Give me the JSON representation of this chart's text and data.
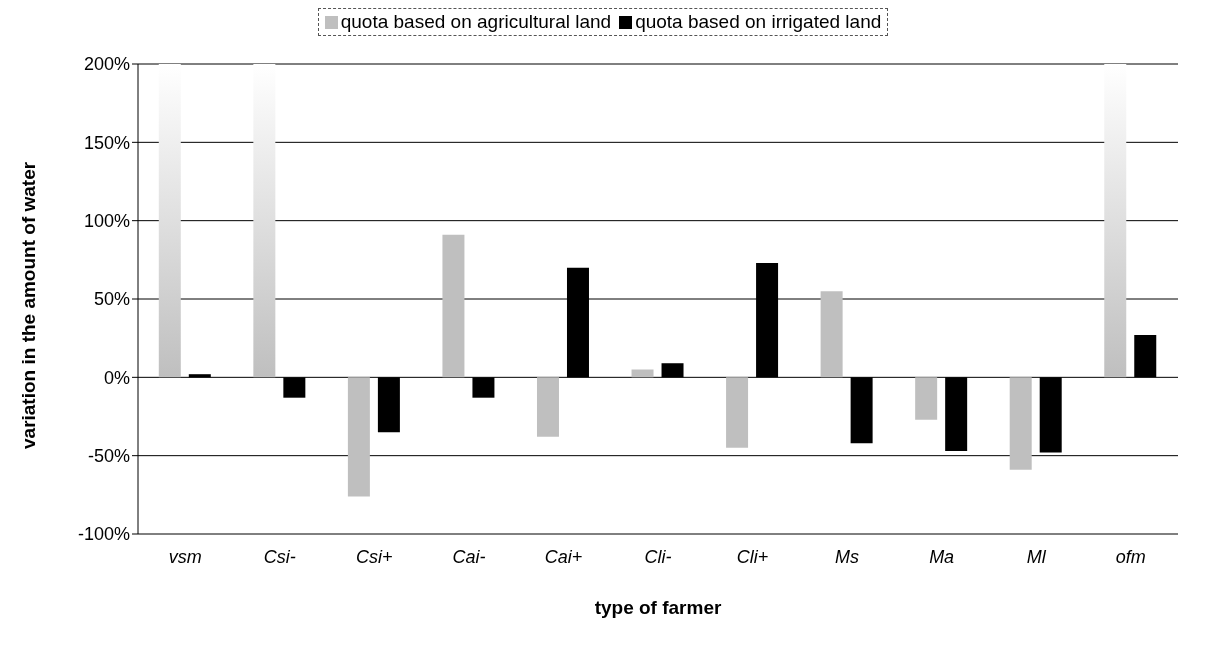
{
  "chart_data": {
    "type": "bar",
    "xlabel": "type of farmer",
    "ylabel": "variation in the amount of water",
    "categories": [
      "vsm",
      "Csi-",
      "Csi+",
      "Cai-",
      "Cai+",
      "Cli-",
      "Cli+",
      "Ms",
      "Ma",
      "Ml",
      "ofm"
    ],
    "series": [
      {
        "name": "quota based on agricultural land",
        "color": "#bfbfbf",
        "values": [
          200,
          200,
          -76,
          91,
          -38,
          5,
          -45,
          55,
          -27,
          -59,
          200
        ]
      },
      {
        "name": "quota based on irrigated land",
        "color": "#000000",
        "values": [
          2,
          -13,
          -35,
          -13,
          70,
          9,
          73,
          -42,
          -47,
          -48,
          27
        ]
      }
    ],
    "ylim": [
      -100,
      200
    ],
    "yticks": [
      {
        "value": -100,
        "label": "-100%"
      },
      {
        "value": -50,
        "label": "-50%"
      },
      {
        "value": 0,
        "label": "0%"
      },
      {
        "value": 50,
        "label": "50%"
      },
      {
        "value": 100,
        "label": "100%"
      },
      {
        "value": 150,
        "label": "150%"
      },
      {
        "value": 200,
        "label": "200%"
      }
    ],
    "grid": "y",
    "legend": "top"
  }
}
